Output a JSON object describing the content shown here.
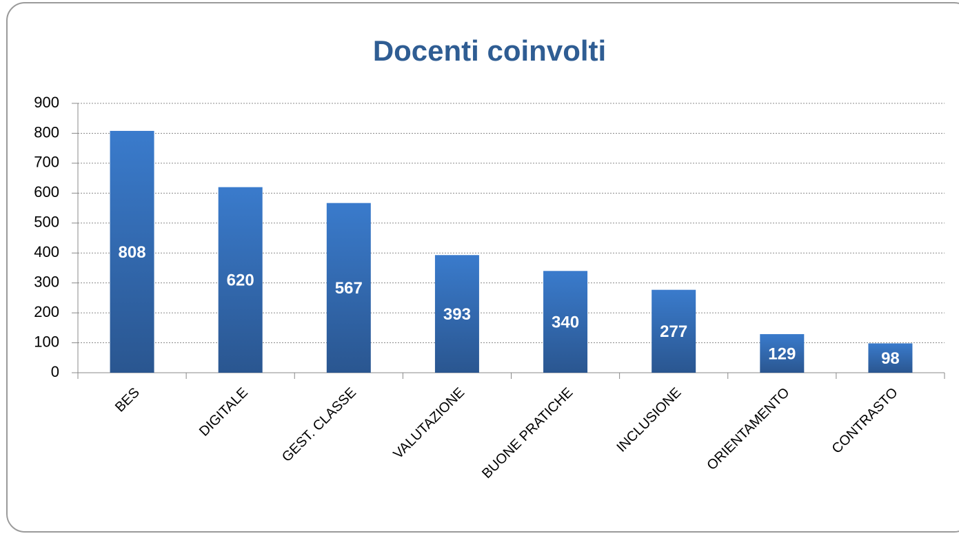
{
  "chart_data": {
    "type": "bar",
    "title": "Docenti coinvolti",
    "categories": [
      "BES",
      "DIGITALE",
      "GEST. CLASSE",
      "VALUTAZIONE",
      "BUONE PRATICHE",
      "INCLUSIONE",
      "ORIENTAMENTO",
      "CONTRASTO"
    ],
    "values": [
      808,
      620,
      567,
      393,
      340,
      277,
      129,
      98
    ],
    "color": "#3a7bcc",
    "ylim": [
      0,
      900
    ],
    "yticks": [
      0,
      100,
      200,
      300,
      400,
      500,
      600,
      700,
      800,
      900
    ],
    "grid": true
  }
}
